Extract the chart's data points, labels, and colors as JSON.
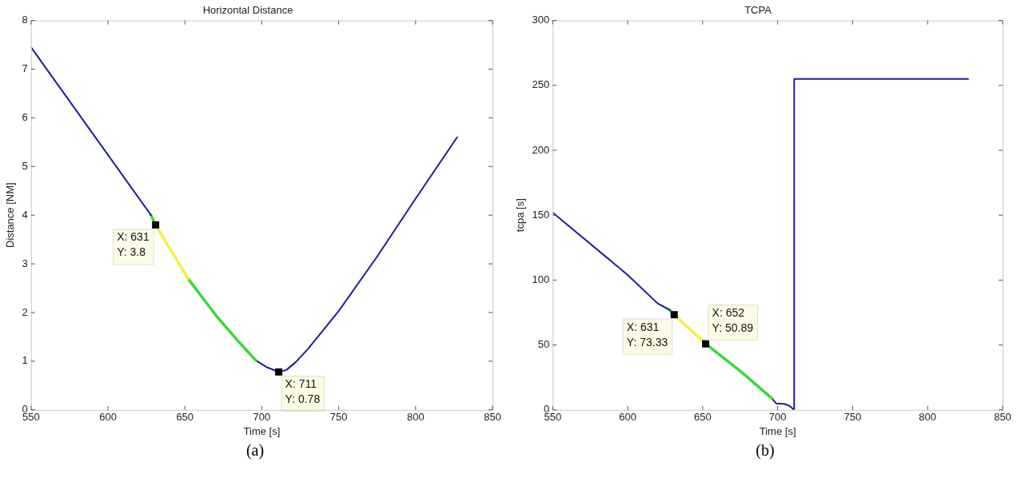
{
  "chart_data": [
    {
      "type": "line",
      "title": "Horizontal Distance",
      "xlabel": "Time [s]",
      "ylabel": "Distance [NM]",
      "xlim": [
        550,
        850
      ],
      "xticks": [
        550,
        600,
        650,
        700,
        750,
        800,
        850
      ],
      "ylim": [
        0,
        8
      ],
      "yticks": [
        0,
        1,
        2,
        3,
        4,
        5,
        6,
        7,
        8
      ],
      "series": [
        {
          "color": "#1c1c9c",
          "x": [
            550,
            628
          ],
          "values": [
            7.45,
            4.0
          ]
        },
        {
          "color": "#3ad83a",
          "x": [
            628,
            631
          ],
          "values": [
            4.0,
            3.8
          ]
        },
        {
          "color": "#f2f040",
          "x": [
            631,
            652
          ],
          "values": [
            3.8,
            2.7
          ]
        },
        {
          "color": "#3ad83a",
          "x": [
            652,
            670,
            685,
            696
          ],
          "values": [
            2.7,
            1.95,
            1.4,
            1.02
          ]
        },
        {
          "color": "#1c1c9c",
          "x": [
            696,
            703,
            711,
            716,
            722,
            730,
            750,
            775,
            800,
            827
          ],
          "values": [
            1.02,
            0.88,
            0.78,
            0.82,
            0.98,
            1.25,
            2.03,
            3.15,
            4.34,
            5.6
          ]
        }
      ],
      "annotations": [
        {
          "text": "X: 631\nY: 3.8",
          "x": 631,
          "y": 3.8
        },
        {
          "text": "X: 711\nY: 0.78",
          "x": 711,
          "y": 0.78
        },
        "(a)"
      ]
    },
    {
      "type": "line",
      "title": "TCPA",
      "xlabel": "Time [s]",
      "ylabel": "tcpa [s]",
      "xlim": [
        550,
        850
      ],
      "xticks": [
        550,
        600,
        650,
        700,
        750,
        800,
        850
      ],
      "ylim": [
        0,
        300
      ],
      "yticks": [
        0,
        50,
        100,
        150,
        200,
        250,
        300
      ],
      "series": [
        {
          "color": "#1c1c9c",
          "x": [
            550,
            600,
            620,
            628
          ],
          "values": [
            152,
            104,
            82,
            77
          ]
        },
        {
          "color": "#3ad83a",
          "x": [
            628,
            631
          ],
          "values": [
            77,
            73.33
          ]
        },
        {
          "color": "#f2f040",
          "x": [
            631,
            652
          ],
          "values": [
            73.33,
            50.89
          ]
        },
        {
          "color": "#3ad83a",
          "x": [
            652,
            675,
            696
          ],
          "values": [
            50.89,
            30,
            9
          ]
        },
        {
          "color": "#1c1c9c",
          "x": [
            696,
            699,
            705,
            708,
            711,
            711,
            827
          ],
          "values": [
            9,
            5,
            4.5,
            3,
            0,
            255,
            255
          ]
        }
      ],
      "annotations": [
        {
          "text": "X: 631\nY: 73.33",
          "x": 631,
          "y": 73.33
        },
        {
          "text": "X: 652\nY: 50.89",
          "x": 652,
          "y": 50.89
        },
        "(b)"
      ]
    }
  ]
}
